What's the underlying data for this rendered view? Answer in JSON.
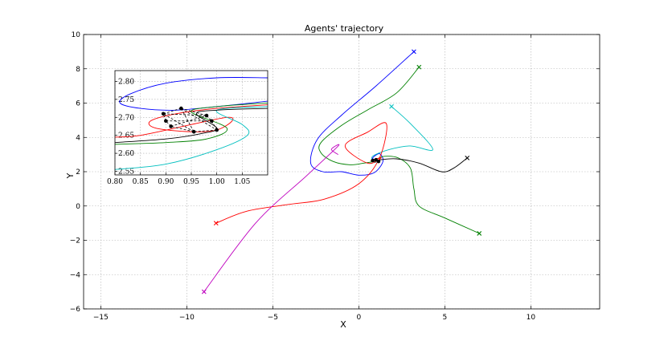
{
  "chart_data": {
    "type": "line",
    "title": "Agents' trajectory",
    "xlabel": "X",
    "ylabel": "Y",
    "xlim": [
      -16,
      14
    ],
    "ylim": [
      -6,
      10
    ],
    "xticks": [
      -15,
      -10,
      -5,
      0,
      5,
      10
    ],
    "yticks": [
      -6,
      -4,
      -2,
      0,
      2,
      4,
      6,
      8,
      10
    ],
    "grid": true,
    "series": [
      {
        "color": "#0000ff",
        "start": [
          3.2,
          9.0
        ],
        "points": [
          [
            3.2,
            9.0
          ],
          [
            1.0,
            7.0
          ],
          [
            -1.0,
            5.3
          ],
          [
            -2.4,
            3.9
          ],
          [
            -2.8,
            2.5
          ],
          [
            -2.1,
            2.0
          ],
          [
            -1.0,
            2.0
          ],
          [
            0.0,
            1.8
          ],
          [
            0.9,
            1.95
          ],
          [
            1.4,
            2.6
          ],
          [
            1.2,
            3.05
          ],
          [
            0.8,
            2.8
          ],
          [
            0.95,
            2.7
          ]
        ]
      },
      {
        "color": "#008000",
        "start": [
          3.5,
          8.1
        ],
        "points": [
          [
            3.5,
            8.1
          ],
          [
            2.2,
            6.6
          ],
          [
            0.5,
            5.6
          ],
          [
            -1.0,
            4.7
          ],
          [
            -2.2,
            3.7
          ],
          [
            -2.2,
            3.1
          ],
          [
            -1.5,
            2.6
          ],
          [
            -0.5,
            2.4
          ],
          [
            0.3,
            2.5
          ],
          [
            0.9,
            2.6
          ],
          [
            0.95,
            2.68
          ]
        ]
      },
      {
        "color": "#008000",
        "start": [
          7.0,
          -1.6
        ],
        "points": [
          [
            7.0,
            -1.6
          ],
          [
            5.0,
            -0.7
          ],
          [
            3.5,
            0.0
          ],
          [
            3.2,
            1.0
          ],
          [
            3.0,
            2.2
          ],
          [
            2.3,
            2.8
          ],
          [
            1.5,
            2.9
          ],
          [
            1.0,
            2.72
          ],
          [
            0.95,
            2.68
          ]
        ]
      },
      {
        "color": "#00bfbf",
        "start": [
          1.9,
          5.8
        ],
        "points": [
          [
            1.9,
            5.8
          ],
          [
            3.0,
            4.8
          ],
          [
            4.3,
            3.3
          ],
          [
            3.0,
            3.5
          ],
          [
            1.8,
            3.3
          ],
          [
            0.8,
            2.9
          ],
          [
            0.9,
            2.55
          ],
          [
            1.1,
            2.62
          ],
          [
            0.97,
            2.7
          ]
        ]
      },
      {
        "color": "#000000",
        "start": [
          6.3,
          2.8
        ],
        "points": [
          [
            6.3,
            2.8
          ],
          [
            5.5,
            2.2
          ],
          [
            4.8,
            2.0
          ],
          [
            3.5,
            2.5
          ],
          [
            2.2,
            2.75
          ],
          [
            1.3,
            2.7
          ],
          [
            0.9,
            2.6
          ],
          [
            0.85,
            2.72
          ],
          [
            0.95,
            2.7
          ]
        ]
      },
      {
        "color": "#ff0000",
        "start": [
          -8.3,
          -1.0
        ],
        "points": [
          [
            -8.3,
            -1.0
          ],
          [
            -6.5,
            -0.3
          ],
          [
            -4.0,
            0.1
          ],
          [
            -2.0,
            0.4
          ],
          [
            0.0,
            1.3
          ],
          [
            1.2,
            2.8
          ],
          [
            1.6,
            4.8
          ],
          [
            0.5,
            4.3
          ],
          [
            -0.8,
            3.5
          ],
          [
            0.5,
            2.5
          ],
          [
            1.3,
            2.8
          ],
          [
            0.9,
            2.72
          ]
        ]
      },
      {
        "color": "#bf00bf",
        "start": [
          -9.0,
          -5.0
        ],
        "points": [
          [
            -9.0,
            -5.0
          ],
          [
            -6.0,
            -1.0
          ],
          [
            -3.0,
            1.8
          ],
          [
            -1.2,
            3.5
          ],
          [
            -1.6,
            3.3
          ],
          [
            -1.2,
            3.0
          ]
        ]
      }
    ],
    "inset": {
      "xlim": [
        0.8,
        1.1
      ],
      "ylim": [
        2.54,
        2.83
      ],
      "xticks": [
        "0.80",
        "0.85",
        "0.90",
        "0.95",
        "1.00",
        "1.05"
      ],
      "yticks": [
        "2.55",
        "2.60",
        "2.65",
        "2.70",
        "2.75",
        "2.80"
      ],
      "curves": [
        {
          "color": "#0000ff",
          "points": [
            [
              1.1,
              2.81
            ],
            [
              1.0,
              2.81
            ],
            [
              0.9,
              2.795
            ],
            [
              0.83,
              2.765
            ],
            [
              0.81,
              2.74
            ],
            [
              0.85,
              2.725
            ],
            [
              0.92,
              2.72
            ],
            [
              1.0,
              2.73
            ],
            [
              1.1,
              2.745
            ]
          ]
        },
        {
          "color": "#ff0000",
          "points": [
            [
              1.1,
              2.735
            ],
            [
              1.0,
              2.725
            ],
            [
              0.92,
              2.71
            ],
            [
              0.87,
              2.69
            ],
            [
              0.88,
              2.67
            ],
            [
              0.95,
              2.66
            ],
            [
              1.0,
              2.665
            ],
            [
              1.03,
              2.69
            ],
            [
              1.02,
              2.7
            ],
            [
              0.95,
              2.68
            ],
            [
              0.85,
              2.65
            ],
            [
              0.8,
              2.645
            ]
          ]
        },
        {
          "color": "#00bfbf",
          "points": [
            [
              1.1,
              2.73
            ],
            [
              1.0,
              2.72
            ],
            [
              1.05,
              2.68
            ],
            [
              1.06,
              2.65
            ],
            [
              1.0,
              2.61
            ],
            [
              0.9,
              2.57
            ],
            [
              0.8,
              2.555
            ]
          ]
        },
        {
          "color": "#008000",
          "points": [
            [
              1.1,
              2.74
            ],
            [
              1.0,
              2.73
            ],
            [
              0.95,
              2.715
            ],
            [
              1.02,
              2.67
            ],
            [
              0.98,
              2.64
            ],
            [
              0.9,
              2.63
            ],
            [
              0.8,
              2.625
            ]
          ]
        },
        {
          "color": "#000000",
          "points": [
            [
              1.1,
              2.725
            ],
            [
              1.0,
              2.72
            ],
            [
              0.96,
              2.71
            ],
            [
              1.0,
              2.67
            ],
            [
              0.97,
              2.655
            ],
            [
              0.9,
              2.64
            ],
            [
              0.8,
              2.63
            ]
          ]
        }
      ],
      "agents": [
        [
          0.895,
          2.71
        ],
        [
          0.93,
          2.725
        ],
        [
          0.98,
          2.705
        ],
        [
          0.99,
          2.69
        ],
        [
          1.0,
          2.665
        ],
        [
          0.955,
          2.66
        ],
        [
          0.91,
          2.675
        ],
        [
          0.9,
          2.69
        ]
      ],
      "links": [
        [
          0,
          1
        ],
        [
          1,
          2
        ],
        [
          2,
          3
        ],
        [
          3,
          4
        ],
        [
          4,
          5
        ],
        [
          5,
          6
        ],
        [
          6,
          7
        ],
        [
          7,
          0
        ],
        [
          0,
          2
        ],
        [
          1,
          4
        ],
        [
          6,
          2
        ],
        [
          7,
          3
        ],
        [
          5,
          0
        ],
        [
          1,
          5
        ]
      ]
    }
  }
}
